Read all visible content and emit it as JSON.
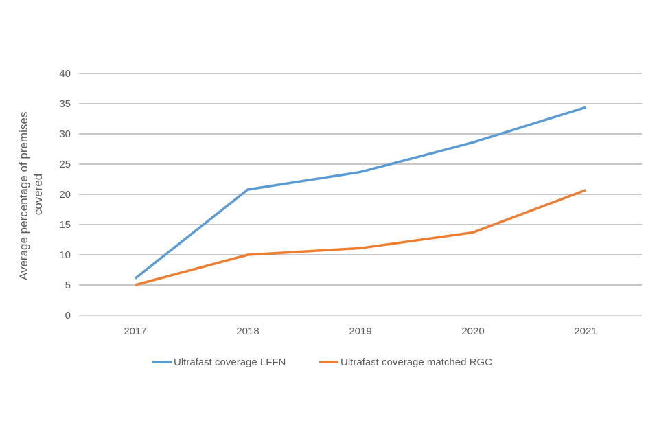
{
  "chart_data": {
    "type": "line",
    "title": "",
    "xlabel": "",
    "ylabel": "Average percentage of premises covered",
    "ylabel_lines": [
      "Average percentage of premises",
      "covered"
    ],
    "categories": [
      "2017",
      "2018",
      "2019",
      "2020",
      "2021"
    ],
    "ylim": [
      0,
      40
    ],
    "yticks": [
      "0",
      "5",
      "10",
      "15",
      "20",
      "25",
      "30",
      "35",
      "40"
    ],
    "grid": true,
    "legend_position": "bottom",
    "series": [
      {
        "name": "Ultrafast coverage LFFN",
        "color": "#5B9BD5",
        "values": [
          6.1,
          20.8,
          23.7,
          28.6,
          34.4
        ]
      },
      {
        "name": "Ultrafast coverage matched RGC",
        "color": "#ED7D31",
        "values": [
          5.0,
          10.0,
          11.1,
          13.7,
          20.7
        ]
      }
    ]
  }
}
